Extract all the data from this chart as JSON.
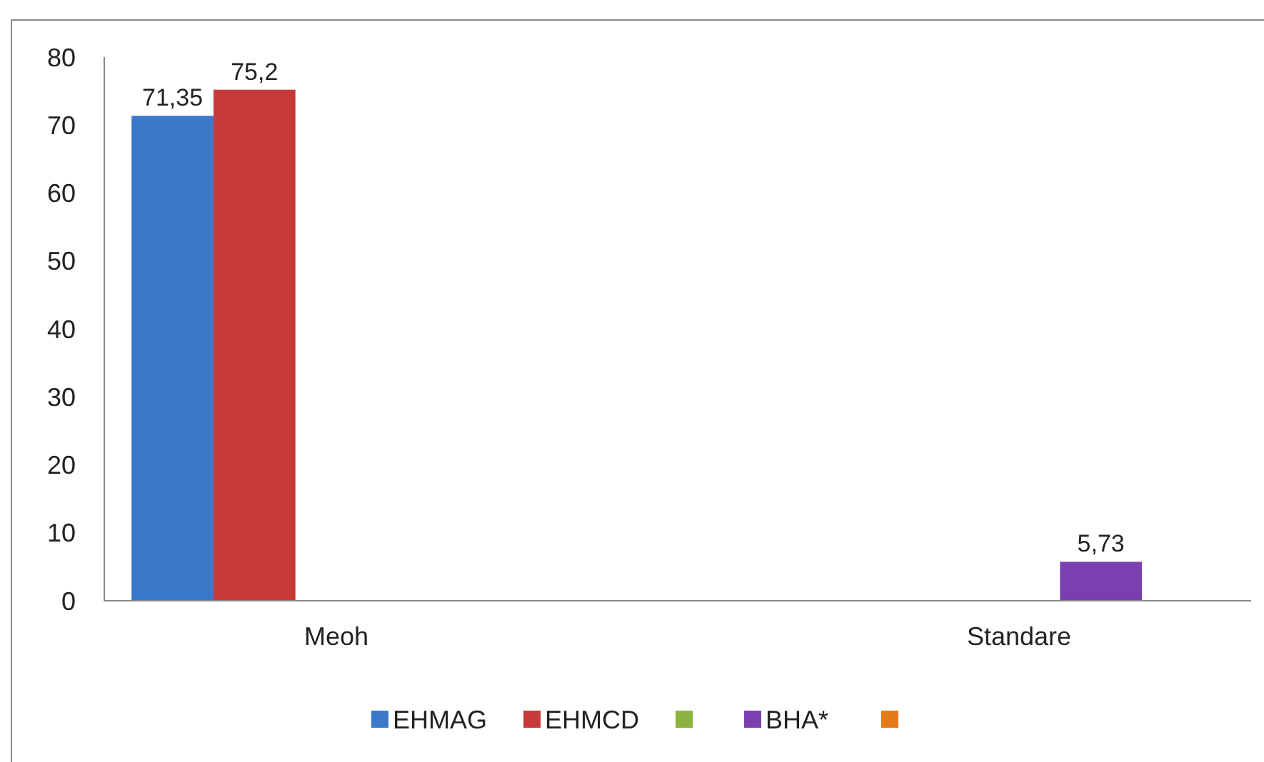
{
  "chart_data": {
    "type": "bar",
    "categories": [
      "Meoh",
      "Standare"
    ],
    "series": [
      {
        "name": "EHMAG",
        "color": "#3a78c9",
        "values": [
          71.35,
          null
        ],
        "value_labels": [
          "71,35",
          null
        ]
      },
      {
        "name": "EHMCD",
        "color": "#c83a3a",
        "values": [
          75.2,
          null
        ],
        "value_labels": [
          "75,2",
          null
        ]
      },
      {
        "color": "#8ab33f",
        "values": [
          null,
          null
        ]
      },
      {
        "name": "BHA*",
        "color": "#7c3fb0",
        "values": [
          null,
          5.73
        ],
        "value_labels": [
          null,
          "5,73"
        ]
      },
      {
        "color": "#e47b1a",
        "values": [
          null,
          null
        ]
      }
    ],
    "ylim": [
      0,
      80
    ],
    "yticks": [
      0,
      10,
      20,
      30,
      40,
      50,
      60,
      70,
      80
    ],
    "grid": false,
    "legend": "bottom"
  }
}
